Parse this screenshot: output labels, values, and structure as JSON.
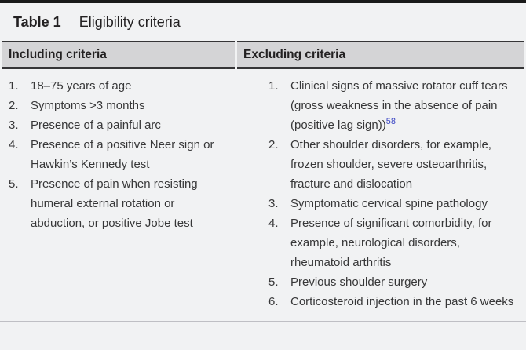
{
  "figure": {
    "label": "Table 1",
    "title": "Eligibility criteria"
  },
  "columns": [
    {
      "header": "Including criteria",
      "items": [
        {
          "text": "18–75 years of age"
        },
        {
          "text": "Symptoms >3 months"
        },
        {
          "text": "Presence of a painful arc"
        },
        {
          "text": "Presence of a positive Neer sign or Hawkin’s Kennedy test"
        },
        {
          "text": "Presence of pain when resisting humeral external rotation or abduction, or positive Jobe test"
        }
      ]
    },
    {
      "header": "Excluding criteria",
      "items": [
        {
          "text": "Clinical signs of massive rotator cuff tears (gross weakness in the absence of pain (positive lag sign))",
          "ref": "58"
        },
        {
          "text": "Other shoulder disorders, for example, frozen shoulder, severe osteoarthritis, fracture and dislocation"
        },
        {
          "text": "Symptomatic cervical spine pathology"
        },
        {
          "text": "Presence of significant comorbidity, for example, neurological disorders, rheumatoid arthritis"
        },
        {
          "text": "Previous shoulder surgery"
        },
        {
          "text": "Corticosteroid injection in the past 6 weeks"
        }
      ]
    }
  ],
  "colors": {
    "page_background": "#f1f2f3",
    "top_bar": "#1a1a1a",
    "header_background": "#d4d4d6",
    "header_border": "#353537",
    "title_text": "#232122",
    "body_text": "#373738",
    "reference_link": "#3a45c4",
    "bottom_rule": "#bfbfc4"
  }
}
